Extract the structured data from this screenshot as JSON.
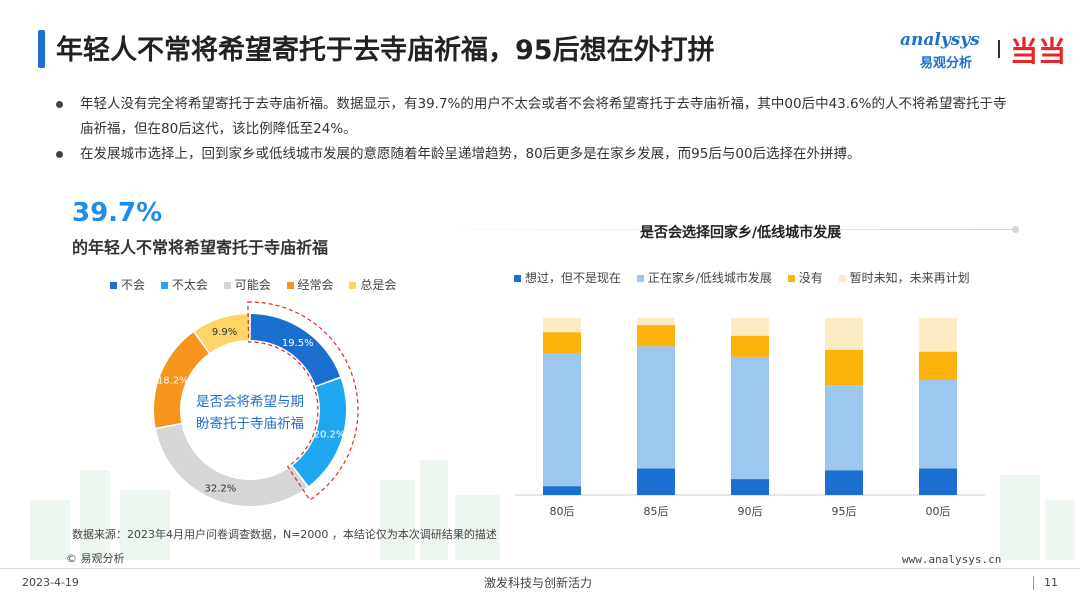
{
  "header": {
    "title": "年轻人不常将希望寄托于去寺庙祈福，95后想在外打拼",
    "logo_analysys_en": "analysys",
    "logo_analysys_cn": "易观分析",
    "logo_dangdang": "当当"
  },
  "bullets": [
    "年轻人没有完全将希望寄托于去寺庙祈福。数据显示，有39.7%的用户不太会或者不会将希望寄托于去寺庙祈福，其中00后中43.6%的人不将希望寄托于寺庙祈福，但在80后这代，该比例降低至24%。",
    "在发展城市选择上，回到家乡或低线城市发展的意愿随着年龄呈递增趋势，80后更多是在家乡发展，而95后与00后选择在外拼搏。"
  ],
  "highlight": {
    "percent": "39.7%",
    "caption": "的年轻人不常将希望寄托于寺庙祈福"
  },
  "chart_data": [
    {
      "type": "pie",
      "donut": true,
      "center_label": "是否会将希望与期盼寄托于寺庙祈福",
      "categories": [
        "不会",
        "不太会",
        "可能会",
        "经常会",
        "总是会"
      ],
      "values": [
        19.5,
        20.2,
        32.2,
        18.2,
        9.9
      ],
      "labels": [
        "19.5%",
        "20.2%",
        "32.2%",
        "18.2%",
        "9.9%"
      ],
      "colors": [
        "#1b6fd1",
        "#1fa7f2",
        "#d6d6d6",
        "#f7941d",
        "#fcd566"
      ],
      "legend": "top",
      "highlighted": [
        "不会",
        "不太会"
      ]
    },
    {
      "type": "bar",
      "stacked": true,
      "title": "是否会选择回家乡/低线城市发展",
      "categories": [
        "80后",
        "85后",
        "90后",
        "95后",
        "00后"
      ],
      "series": [
        {
          "name": "想过，但不是现在",
          "values": [
            5,
            15,
            9,
            14,
            15
          ],
          "color": "#1b6fd1"
        },
        {
          "name": "正在家乡/低线城市发展",
          "values": [
            75,
            69,
            69,
            48,
            50
          ],
          "color": "#9cc7ee"
        },
        {
          "name": "没有",
          "values": [
            12,
            12,
            12,
            20,
            16
          ],
          "color": "#fbb40c"
        },
        {
          "name": "暂时未知，未来再计划",
          "values": [
            8,
            4,
            10,
            18,
            19
          ],
          "color": "#fdebc6"
        }
      ],
      "ylim": [
        0,
        100
      ],
      "legend": "top",
      "grid": false
    }
  ],
  "footer": {
    "source": "数据来源：2023年4月用户问卷调查数据，N=2000 ，本结论仅为本次调研结果的描述",
    "copyright": "© 易观分析",
    "website": "www.analysys.cn",
    "date": "2023-4-19",
    "slogan": "激发科技与创新活力",
    "page": "11"
  }
}
